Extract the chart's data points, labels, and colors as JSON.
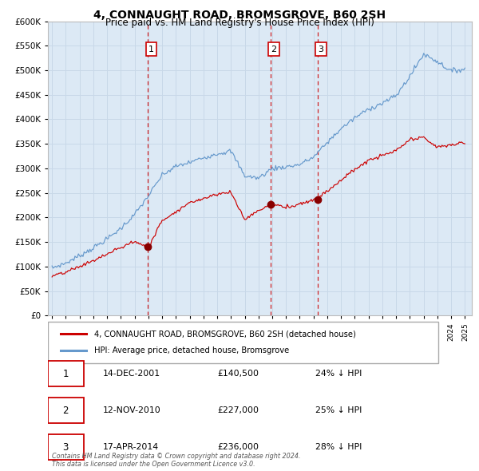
{
  "title": "4, CONNAUGHT ROAD, BROMSGROVE, B60 2SH",
  "subtitle": "Price paid vs. HM Land Registry's House Price Index (HPI)",
  "outer_bg": "#ffffff",
  "plot_bg_color": "#dce9f5",
  "grid_color": "#c8d8e8",
  "ylim": [
    0,
    600000
  ],
  "yticks": [
    0,
    50000,
    100000,
    150000,
    200000,
    250000,
    300000,
    350000,
    400000,
    450000,
    500000,
    550000,
    600000
  ],
  "xlim_start": 1994.7,
  "xlim_end": 2025.5,
  "red_line_color": "#cc0000",
  "blue_line_color": "#6699cc",
  "marker_color": "#880000",
  "vline_color": "#cc0000",
  "purchase_dates": [
    2001.95,
    2010.87,
    2014.29
  ],
  "purchase_prices": [
    140500,
    227000,
    236000
  ],
  "purchase_labels": [
    "1",
    "2",
    "3"
  ],
  "legend_line1": "4, CONNAUGHT ROAD, BROMSGROVE, B60 2SH (detached house)",
  "legend_line2": "HPI: Average price, detached house, Bromsgrove",
  "table_rows": [
    [
      "1",
      "14-DEC-2001",
      "£140,500",
      "24% ↓ HPI"
    ],
    [
      "2",
      "12-NOV-2010",
      "£227,000",
      "25% ↓ HPI"
    ],
    [
      "3",
      "17-APR-2014",
      "£236,000",
      "28% ↓ HPI"
    ]
  ],
  "footnote": "Contains HM Land Registry data © Crown copyright and database right 2024.\nThis data is licensed under the Open Government Licence v3.0."
}
